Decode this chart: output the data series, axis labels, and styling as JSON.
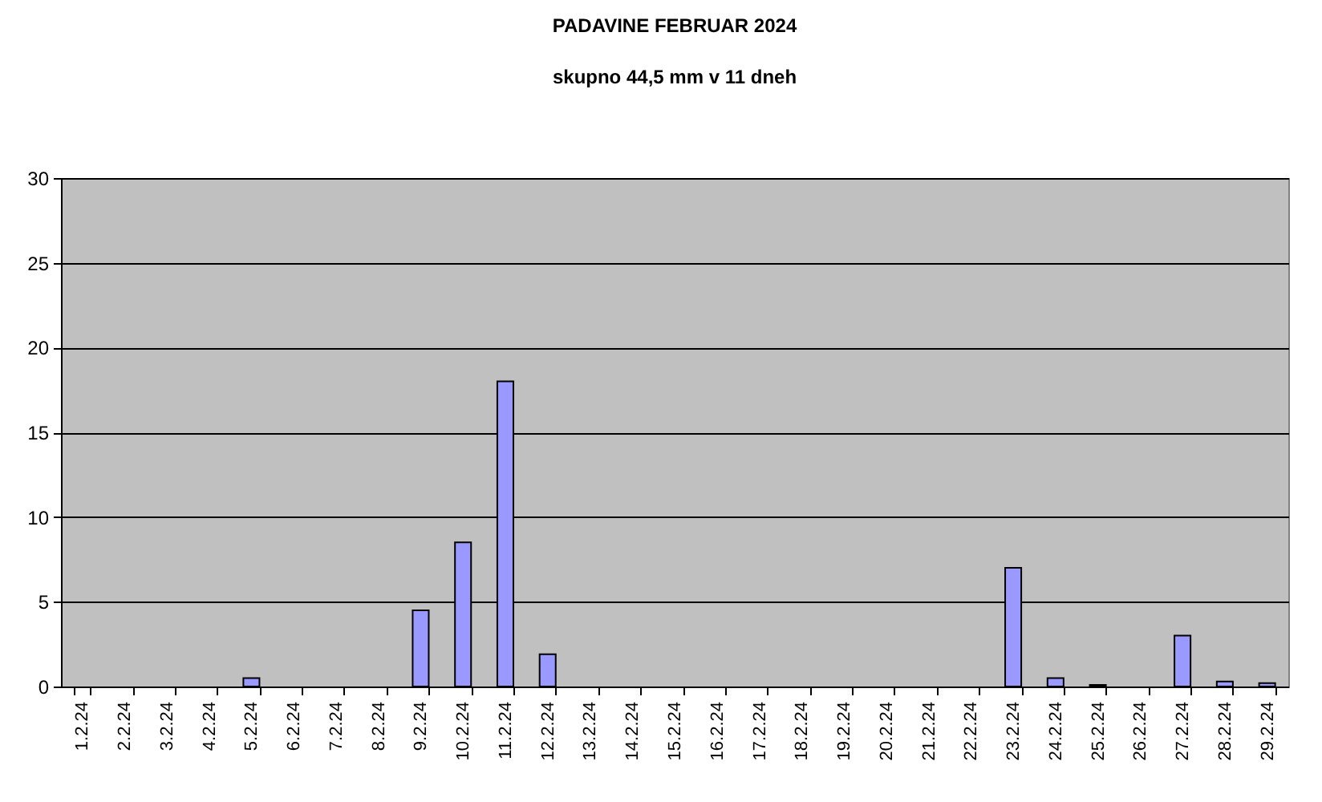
{
  "chart_data": {
    "type": "bar",
    "title": "PADAVINE FEBRUAR 2024",
    "subtitle": "skupno 44,5 mm v 11 dneh",
    "categories": [
      "1.2.24",
      "2.2.24",
      "3.2.24",
      "4.2.24",
      "5.2.24",
      "6.2.24",
      "7.2.24",
      "8.2.24",
      "9.2.24",
      "10.2.24",
      "11.2.24",
      "12.2.24",
      "13.2.24",
      "14.2.24",
      "15.2.24",
      "16.2.24",
      "17.2.24",
      "18.2.24",
      "19.2.24",
      "20.2.24",
      "21.2.24",
      "22.2.24",
      "23.2.24",
      "24.2.24",
      "25.2.24",
      "26.2.24",
      "27.2.24",
      "28.2.24",
      "29.2.24"
    ],
    "values": [
      null,
      null,
      null,
      null,
      0.5,
      null,
      null,
      null,
      4.5,
      8.5,
      18,
      1.9,
      null,
      null,
      null,
      null,
      null,
      null,
      null,
      null,
      null,
      null,
      7,
      0.5,
      0.1,
      null,
      3,
      0.3,
      0.2
    ],
    "color": "#9999ff",
    "ylim": [
      0,
      30
    ],
    "yticks": [
      0,
      5,
      10,
      15,
      20,
      25,
      30
    ],
    "grid": "y"
  }
}
